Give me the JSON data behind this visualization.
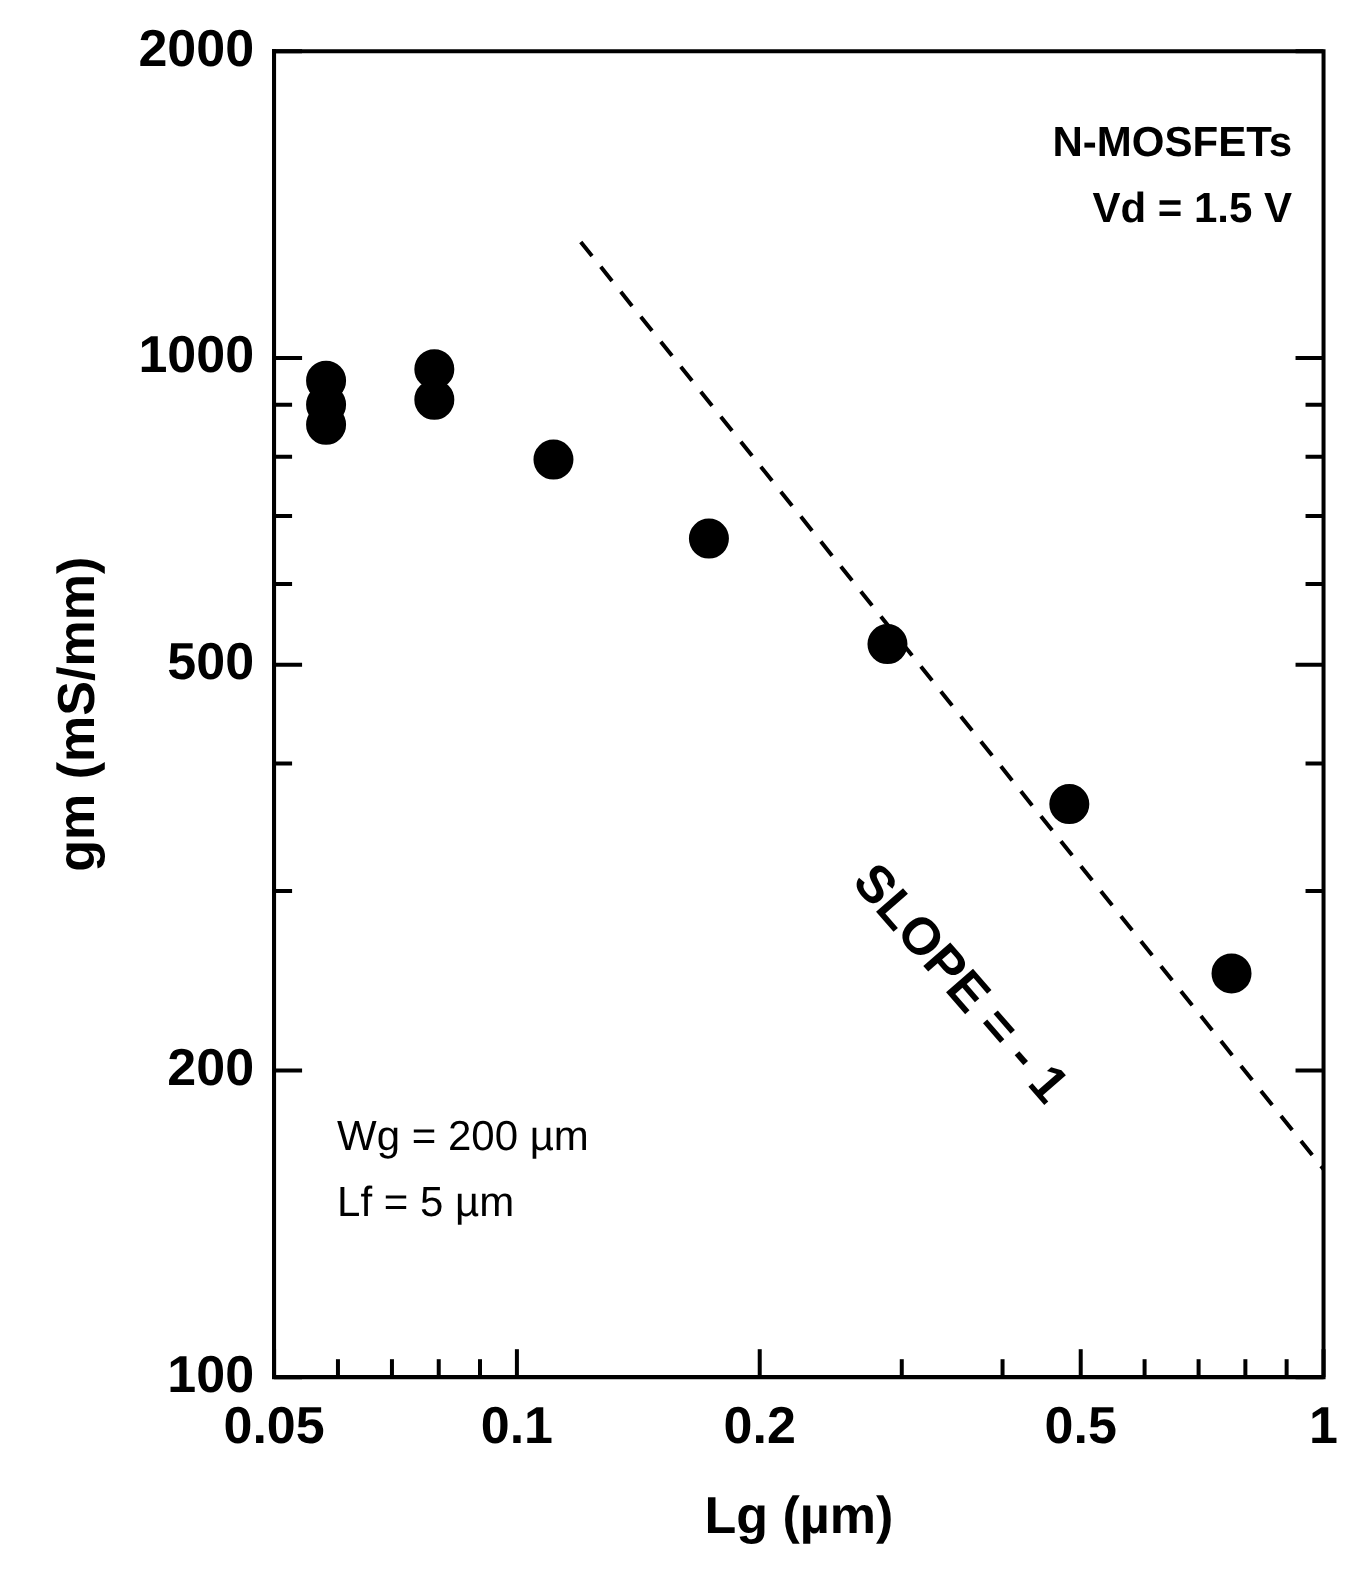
{
  "chart_data": {
    "type": "scatter",
    "xlabel": "Lg (µm)",
    "ylabel": "gm (mS/mm)",
    "log": "xy",
    "grid": false,
    "legend": false,
    "marker": "circle",
    "xlim": [
      0.05,
      1
    ],
    "xticks": [
      0.05,
      {
        "value": 0.06,
        "label": null
      },
      {
        "value": 0.07,
        "label": null
      },
      {
        "value": 0.08,
        "label": null
      },
      {
        "value": 0.09,
        "label": null
      },
      0.1,
      0.2,
      {
        "value": 0.3,
        "label": null
      },
      {
        "value": 0.4,
        "label": null
      },
      0.5,
      {
        "value": 0.6,
        "label": null
      },
      {
        "value": 0.7,
        "label": null
      },
      {
        "value": 0.8,
        "label": null
      },
      {
        "value": 0.9,
        "label": null
      },
      1
    ],
    "ylim": [
      100,
      2000
    ],
    "yticks": [
      100,
      200,
      {
        "value": 300,
        "label": null
      },
      {
        "value": 400,
        "label": null
      },
      500,
      {
        "value": 600,
        "label": null
      },
      {
        "value": 700,
        "label": null
      },
      {
        "value": 800,
        "label": null
      },
      {
        "value": 900,
        "label": null
      },
      1000,
      2000
    ],
    "series": [
      {
        "type": "scatter",
        "color": "#000000",
        "x": [
          0.058,
          0.058,
          0.058,
          0.079,
          0.079,
          0.111,
          0.173,
          0.288,
          0.484,
          0.769
        ],
        "values": [
          950,
          900,
          860,
          975,
          910,
          795,
          665,
          524,
          365,
          249
        ]
      },
      {
        "type": "line",
        "color": "#000000",
        "line_style": "dashed",
        "marker": "none",
        "x": [
          0.12,
          1
        ],
        "values": [
          1300,
          160
        ]
      }
    ],
    "annotations": [
      "N-MOSFETs",
      "Vd = 1.5 V",
      "SLOPE = - 1",
      "Wg = 200 µm",
      "Lf = 5 µm"
    ]
  }
}
